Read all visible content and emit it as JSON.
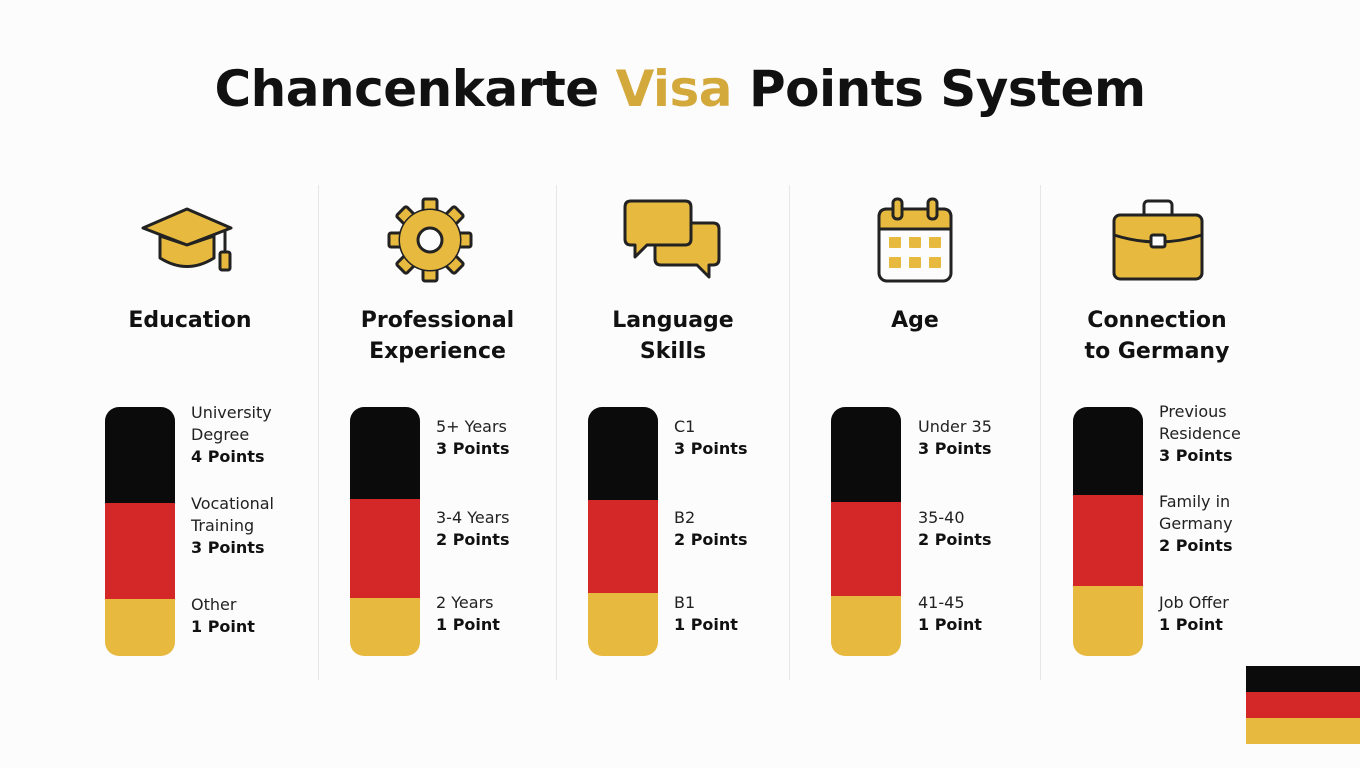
{
  "title": {
    "before": "Chancenkarte ",
    "accent": "Visa",
    "after": " Points System"
  },
  "colors": {
    "accent": "#d4a93c",
    "black": "#0b0b0b",
    "red": "#d42727",
    "gold": "#e7b93f"
  },
  "columns": [
    {
      "icon": "graduation-cap-icon",
      "title": [
        "Education"
      ],
      "tiers": [
        {
          "label": [
            "University",
            "Degree"
          ],
          "points": "4 Points"
        },
        {
          "label": [
            "Vocational",
            "Training"
          ],
          "points": "3 Points"
        },
        {
          "label": [
            "Other"
          ],
          "points": "1 Point"
        }
      ]
    },
    {
      "icon": "gear-icon",
      "title": [
        "Professional",
        "Experience"
      ],
      "tiers": [
        {
          "label": [
            "5+ Years"
          ],
          "points": "3 Points"
        },
        {
          "label": [
            "3-4 Years"
          ],
          "points": "2 Points"
        },
        {
          "label": [
            "2 Years"
          ],
          "points": "1 Point"
        }
      ]
    },
    {
      "icon": "chat-bubbles-icon",
      "title": [
        "Language",
        "Skills"
      ],
      "tiers": [
        {
          "label": [
            "C1"
          ],
          "points": "3 Points"
        },
        {
          "label": [
            "B2"
          ],
          "points": "2 Points"
        },
        {
          "label": [
            "B1"
          ],
          "points": "1 Point"
        }
      ]
    },
    {
      "icon": "calendar-icon",
      "title": [
        "Age"
      ],
      "tiers": [
        {
          "label": [
            "Under 35"
          ],
          "points": "3 Points"
        },
        {
          "label": [
            "35-40"
          ],
          "points": "2 Points"
        },
        {
          "label": [
            "41-45"
          ],
          "points": "1 Point"
        }
      ]
    },
    {
      "icon": "briefcase-icon",
      "title": [
        "Connection",
        "to Germany"
      ],
      "tiers": [
        {
          "label": [
            "Previous",
            "Residence"
          ],
          "points": "3 Points"
        },
        {
          "label": [
            "Family in",
            "Germany"
          ],
          "points": "2 Points"
        },
        {
          "label": [
            "Job Offer"
          ],
          "points": "1 Point"
        }
      ]
    }
  ],
  "flag": {
    "name": "germany-flag",
    "stripes": [
      "black",
      "red",
      "gold"
    ]
  }
}
